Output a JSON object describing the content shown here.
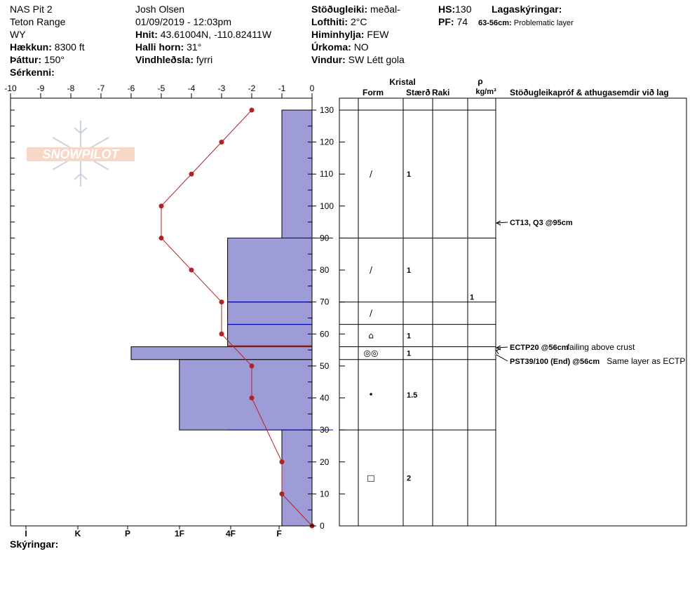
{
  "header": {
    "pit_name": "NAS Pit 2",
    "range": "Teton Range",
    "state": "WY",
    "elevation_label": "Hækkun:",
    "elevation_value": "8300 ft",
    "aspect_label": "Þáttur:",
    "aspect_value": "150°",
    "features_label": "Sérkenni:",
    "observer": "Josh Olsen",
    "datetime": "01/09/2019 - 12:03pm",
    "coords_label": "Hnit:",
    "coords_value": "43.61004N, -110.82411W",
    "slope_label": "Halli horn:",
    "slope_value": "31°",
    "wind_loading_label": "Vindhleðsla:",
    "wind_loading_value": "fyrri",
    "stability_label": "Stöðugleiki:",
    "stability_value": "meðal-",
    "air_temp_label": "Lofthiti:",
    "air_temp_value": "2°C",
    "sky_label": "Himinhylja:",
    "sky_value": "FEW",
    "precip_label": "Úrkoma:",
    "precip_value": "NO",
    "wind_label": "Vindur:",
    "wind_value": "SW Létt gola",
    "hs_label": "HS:",
    "hs_value": "130",
    "pf_label": "PF:",
    "pf_value": "74",
    "layer_notes_label": "Lagaskýringar:",
    "layer_note_range": "63-56cm:",
    "layer_note_text": "Problematic layer"
  },
  "footer": {
    "notes_label": "Skýringar:"
  },
  "logo_text": "SNOWPILOT",
  "table_headers": {
    "crystal": "Kristal",
    "form": "Form",
    "size": "Stærð",
    "moisture": "Raki",
    "density_symbol": "ρ",
    "density_unit": "kg/m³",
    "tests": "Stöðugleikapróf & athugasemdir við lag"
  },
  "colors": {
    "layer_fill": "#9e9cd6",
    "layer_line": "#0000cc",
    "temp": "#b22222",
    "crust_line": "#b22222"
  },
  "chart_data": {
    "type": "area",
    "depth_axis": {
      "ticks": [
        0,
        10,
        20,
        30,
        40,
        50,
        60,
        70,
        80,
        90,
        100,
        110,
        120,
        130
      ],
      "range": [
        0,
        130
      ]
    },
    "temp_axis": {
      "ticks": [
        -10,
        -9,
        -8,
        -7,
        -6,
        -5,
        -4,
        -3,
        -2,
        -1,
        0
      ],
      "range": [
        -10,
        0
      ]
    },
    "hardness_axis": {
      "labels": [
        "I",
        "K",
        "P",
        "1F",
        "4F",
        "F"
      ]
    },
    "hardness_profile": [
      {
        "top": 130,
        "bottom": 90,
        "hardness": -1
      },
      {
        "top": 90,
        "bottom": 70,
        "hardness": -2.8
      },
      {
        "top": 70,
        "bottom": 63,
        "hardness": -2.8
      },
      {
        "top": 63,
        "bottom": 56,
        "hardness": -2.8
      },
      {
        "top": 56,
        "bottom": 52,
        "hardness": -6
      },
      {
        "top": 52,
        "bottom": 30,
        "hardness": -4.4
      },
      {
        "top": 30,
        "bottom": 0,
        "hardness": -1
      }
    ],
    "temperature_profile": [
      {
        "depth": 130,
        "temp": -2
      },
      {
        "depth": 120,
        "temp": -3
      },
      {
        "depth": 110,
        "temp": -4
      },
      {
        "depth": 100,
        "temp": -5
      },
      {
        "depth": 90,
        "temp": -5
      },
      {
        "depth": 80,
        "temp": -4
      },
      {
        "depth": 70,
        "temp": -3
      },
      {
        "depth": 60,
        "temp": -3
      },
      {
        "depth": 50,
        "temp": -2
      },
      {
        "depth": 40,
        "temp": -2
      },
      {
        "depth": 20,
        "temp": -1
      },
      {
        "depth": 10,
        "temp": -1
      },
      {
        "depth": 0,
        "temp": 0
      }
    ],
    "layer_boundaries": [
      130,
      90,
      70,
      63,
      56,
      52,
      30
    ],
    "crystals": [
      {
        "depth": 110,
        "form": "/",
        "size": "1"
      },
      {
        "depth": 80,
        "form": "/",
        "size": "1"
      },
      {
        "depth": 66.5,
        "form": "/",
        "size": ""
      },
      {
        "depth": 59.5,
        "form": "⌂",
        "size": "1"
      },
      {
        "depth": 54,
        "form": "◎◎",
        "size": "1"
      },
      {
        "depth": 41,
        "form": "•",
        "size": "1.5"
      },
      {
        "depth": 15,
        "form": "□",
        "size": "2"
      }
    ],
    "density": [
      {
        "depth": 68.5,
        "value": "1"
      }
    ],
    "tests": [
      {
        "depth": 95,
        "text_bold": "CT13, Q3 @95cm",
        "text": ""
      },
      {
        "depth": 56,
        "text_bold": "ECTP20 @56cm",
        "text": "failing above crust"
      },
      {
        "depth": 56,
        "text_bold": "PST39/100 (End) @56cm",
        "text": "Same layer as ECTP"
      }
    ]
  }
}
